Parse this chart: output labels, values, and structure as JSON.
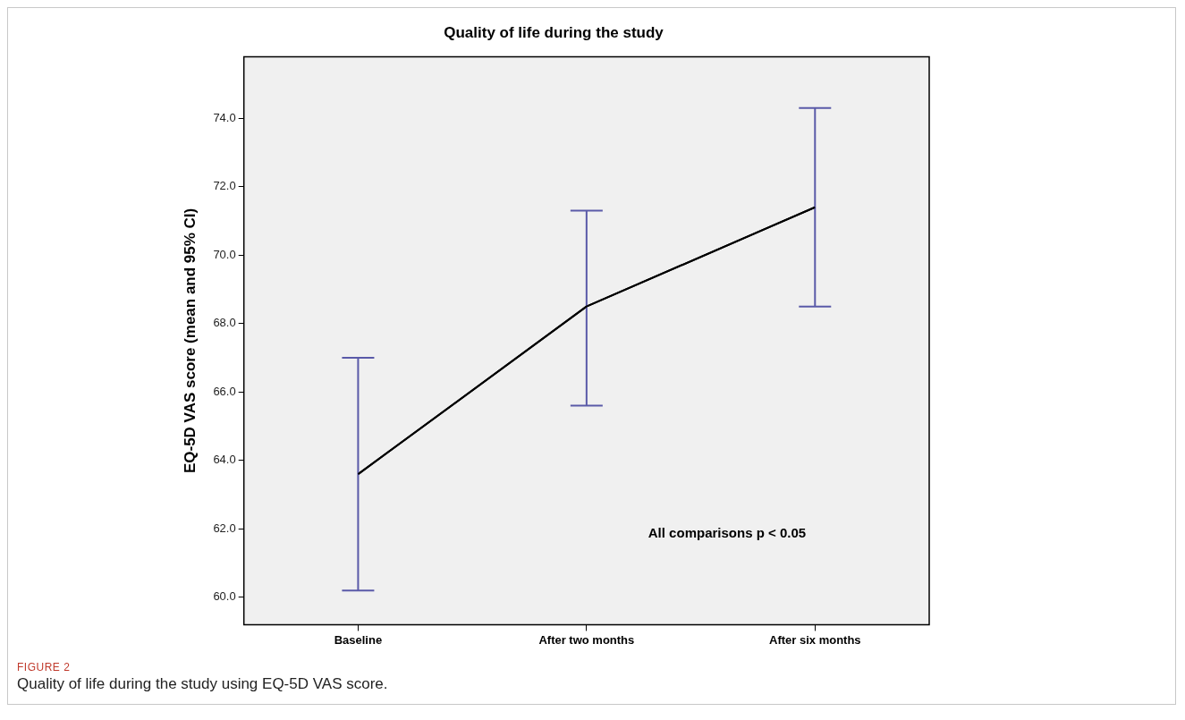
{
  "chart_data": {
    "type": "line",
    "title": "Quality of life during the study",
    "ylabel": "EQ-5D VAS score (mean and 95% CI)",
    "categories": [
      "Baseline",
      "After two months",
      "After six months"
    ],
    "series": [
      {
        "color": "#000000",
        "values": [
          63.6,
          68.5,
          71.4
        ],
        "errors": [
          [
            60.2,
            67.0
          ],
          [
            65.6,
            71.3
          ],
          [
            68.5,
            74.3
          ]
        ]
      }
    ],
    "ylim": [
      59.2,
      75.8
    ],
    "yticks": [
      {
        "value": 60,
        "label": "60.0"
      },
      {
        "value": 62,
        "label": "62.0"
      },
      {
        "value": 64,
        "label": "64.0"
      },
      {
        "value": 66,
        "label": "66.0"
      },
      {
        "value": 68,
        "label": "68.0"
      },
      {
        "value": 70,
        "label": "70.0"
      },
      {
        "value": 72,
        "label": "72.0"
      },
      {
        "value": 74,
        "label": "74.0"
      }
    ],
    "legend": false,
    "marker": "none",
    "line_style": "solid",
    "annotations": [
      "All comparisons p < 0.05",
      "FIGURE 2",
      "Quality of life during the study using EQ-5D VAS score."
    ]
  }
}
